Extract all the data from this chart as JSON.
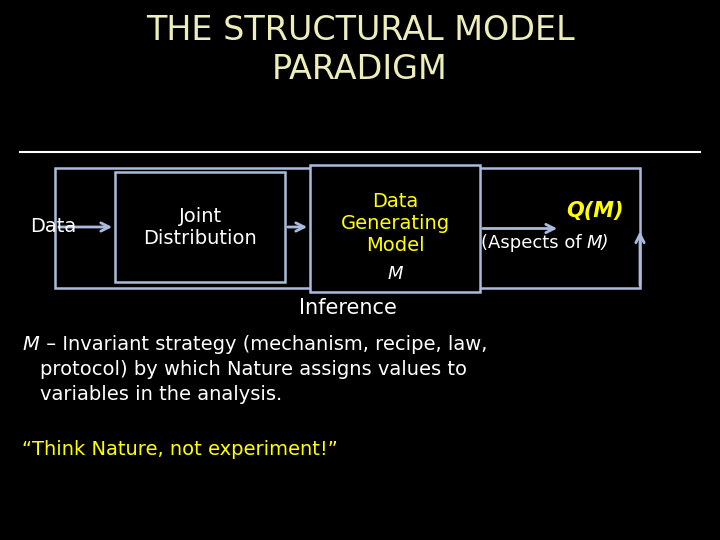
{
  "title": "THE STRUCTURAL MODEL\nPARADIGM",
  "title_color": "#EEEEBB",
  "bg_color": "#000000",
  "box_edge_color": "#AABBDD",
  "box_face_color": "#000000",
  "white_text": "#FFFFFF",
  "yellow_text": "#FFFF00",
  "arrow_color": "#AABBDD",
  "joint_dist_label": "Joint\nDistribution",
  "data_generating_label": "Data\nGenerating\nModel",
  "data_label": "Data",
  "qm_label": "Q(M)",
  "m_label": "M",
  "inference_label": "Inference",
  "body_m": "M",
  "body_rest": " – Invariant strategy (mechanism, recipe, law,\nprotocol) by which Nature assigns values to\nvariables in the analysis.",
  "quote_label": "“Think Nature, not experiment!”"
}
